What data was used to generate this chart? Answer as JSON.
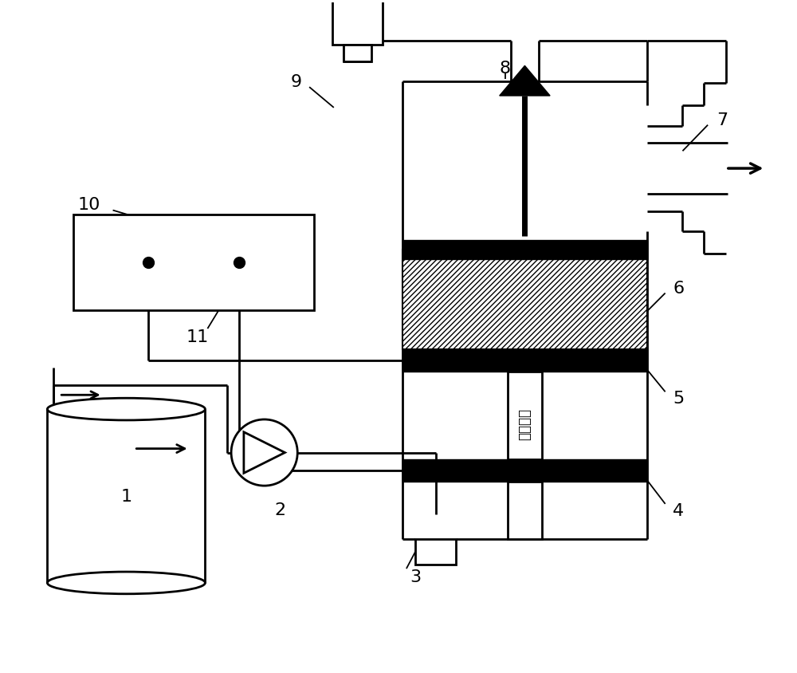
{
  "bg_color": "#ffffff",
  "lc": "#000000",
  "figsize": [
    10.0,
    8.45
  ],
  "dpi": 100,
  "chinese_text": "水流方向",
  "lw": 2.0,
  "lw_thick": 5.0
}
